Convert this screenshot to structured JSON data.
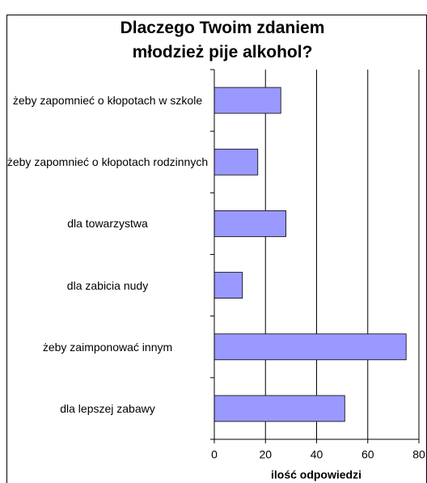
{
  "chart_data": {
    "type": "bar",
    "orientation": "horizontal",
    "title": "Dlaczego Twoim zdaniem młodzież pije alkohol?",
    "xlabel": "ilość odpowiedzi",
    "categories": [
      "żeby zapomnieć o kłopotach w szkole",
      "żeby zapomnieć o kłopotach rodzinnych",
      "dla towarzystwa",
      "dla zabicia nudy",
      "żeby zaimponować innym",
      "dla lepszej zabawy"
    ],
    "values": [
      26,
      17,
      28,
      11,
      75,
      51
    ],
    "color": "#9999ff",
    "xlim": [
      0,
      80
    ],
    "xticks": [
      0,
      20,
      40,
      60,
      80
    ],
    "grid": true
  }
}
